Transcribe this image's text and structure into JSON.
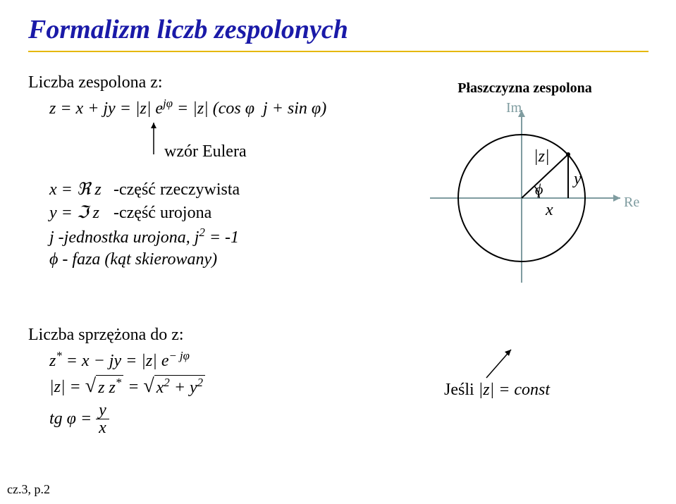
{
  "title": {
    "text": "Formalizm liczb zespolonych",
    "color": "#1a1aa8"
  },
  "underline_color": "#e6b800",
  "intro": "Liczba zespolona z:",
  "formula1_html": "z = x + jy = |z| e<span class='sup'>jφ</span> = |z| (cos φ&nbsp; j + sin φ)",
  "euler_label": "wzór Eulera",
  "def": {
    "x_re_math": "x = ℜ z",
    "x_re_desc": "-część rzeczywista",
    "y_im_math": "y = ℑ z",
    "y_im_desc": "-część urojona",
    "j_unit": "j -jednostka urojona, j² = -1",
    "phi_phase": "ϕ - faza (kąt skierowany)"
  },
  "sprzezone": {
    "heading": "Liczba sprzężona do z:",
    "f1_html": "z<span class='sup'>*</span> = x − jy = |z| e<span class='sup'>− jφ</span>",
    "f2_label": "|z| =",
    "f2_sqrt1": "z z<span class='sup'>*</span>",
    "f2_eq": " = ",
    "f2_sqrt2": "x<span class='sup'>2</span> + y<span class='sup'>2</span>",
    "tg_label": "tg φ =",
    "tg_num": "y",
    "tg_den": "x"
  },
  "diagram": {
    "title": "Płaszczyzna zespolona",
    "im_label": "Im",
    "re_label": "Re",
    "z_label": "|z|",
    "y_label": "y",
    "x_label": "x",
    "phi_label": "ϕ",
    "colors": {
      "axis": "#7f9ca0",
      "circle": "#000000",
      "radius": "#000000",
      "background": "#ffffff"
    }
  },
  "jesli": "Jeśli  |z| = const",
  "footer": "cz.3, p.2"
}
